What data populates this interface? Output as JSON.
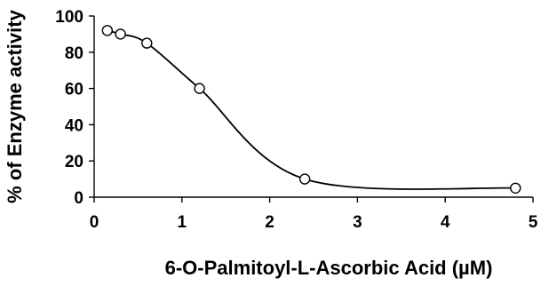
{
  "chart_data": {
    "type": "scatter",
    "title": "",
    "xlabel": "6-O-Palmitoyl-L-Ascorbic Acid (µM)",
    "ylabel": "% of Enzyme activity",
    "xlim": [
      0,
      5
    ],
    "ylim": [
      0,
      100
    ],
    "xticks": [
      0,
      1,
      2,
      3,
      4,
      5
    ],
    "yticks": [
      0,
      20,
      40,
      60,
      80,
      100
    ],
    "xtick_labels": [
      "0",
      "1",
      "2",
      "3",
      "4",
      "5"
    ],
    "ytick_labels": [
      "0",
      "20",
      "40",
      "60",
      "80",
      "100"
    ],
    "grid": false,
    "legend": "none",
    "series": [
      {
        "x": [
          0.15,
          0.3,
          0.6,
          1.2,
          2.4,
          4.8
        ],
        "y": [
          92,
          90,
          85,
          60,
          10,
          5
        ],
        "marker": "open-circle",
        "line": "smoothed"
      }
    ],
    "colors": {
      "line": "#000000",
      "marker_fill": "#ffffff"
    }
  }
}
